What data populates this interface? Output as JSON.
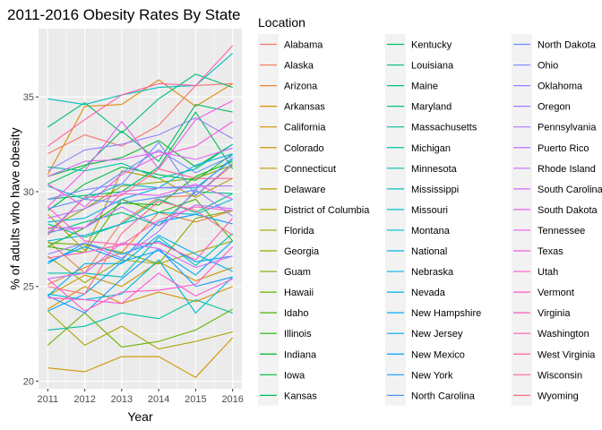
{
  "chart_data": {
    "type": "line",
    "title": "2011-2016 Obesity Rates By State",
    "xlabel": "Year",
    "ylabel": "% of adults who have obesity",
    "x": [
      2011,
      2012,
      2013,
      2014,
      2015,
      2016
    ],
    "xlim": [
      2010.75,
      2016.25
    ],
    "ylim": [
      19.6,
      38.6
    ],
    "yticks": [
      20,
      25,
      30,
      35
    ],
    "grid": true,
    "legend_title": "Location",
    "legend_position": "right",
    "series": [
      {
        "name": "Alabama",
        "color": "#F8766D",
        "values": [
          32.0,
          33.0,
          32.4,
          33.5,
          35.6,
          35.7
        ]
      },
      {
        "name": "Alaska",
        "color": "#F27D52",
        "values": [
          27.4,
          25.7,
          28.4,
          29.7,
          29.8,
          31.4
        ]
      },
      {
        "name": "Arizona",
        "color": "#EA8331",
        "values": [
          25.1,
          26.0,
          26.8,
          28.9,
          28.4,
          29.0
        ]
      },
      {
        "name": "Arkansas",
        "color": "#E38900",
        "values": [
          30.9,
          34.5,
          34.6,
          35.9,
          34.5,
          35.7
        ]
      },
      {
        "name": "California",
        "color": "#DA8F00",
        "values": [
          23.8,
          25.0,
          24.1,
          24.7,
          24.2,
          25.0
        ]
      },
      {
        "name": "Colorado",
        "color": "#D09400",
        "values": [
          20.7,
          20.5,
          21.3,
          21.3,
          20.2,
          22.3
        ]
      },
      {
        "name": "Connecticut",
        "color": "#C59900",
        "values": [
          24.5,
          25.6,
          25.0,
          26.3,
          25.3,
          26.0
        ]
      },
      {
        "name": "Delaware",
        "color": "#B99E00",
        "values": [
          28.8,
          26.9,
          31.1,
          30.7,
          29.7,
          30.7
        ]
      },
      {
        "name": "District of Columbia",
        "color": "#ACA300",
        "values": [
          23.7,
          21.9,
          22.9,
          21.7,
          22.1,
          22.6
        ]
      },
      {
        "name": "Florida",
        "color": "#9EA700",
        "values": [
          26.6,
          25.2,
          26.4,
          26.2,
          26.8,
          27.4
        ]
      },
      {
        "name": "Georgia",
        "color": "#8EAB00",
        "values": [
          28.0,
          29.1,
          30.3,
          30.5,
          30.7,
          31.4
        ]
      },
      {
        "name": "Guam",
        "color": "#7CAE00",
        "values": [
          27.3,
          27.2,
          26.8,
          26.2,
          28.6,
          29.0
        ]
      },
      {
        "name": "Hawaii",
        "color": "#66B200",
        "values": [
          21.9,
          23.6,
          21.8,
          22.1,
          22.7,
          23.8
        ]
      },
      {
        "name": "Idaho",
        "color": "#4BB400",
        "values": [
          27.1,
          26.8,
          29.6,
          28.9,
          29.6,
          27.4
        ]
      },
      {
        "name": "Illinois",
        "color": "#1BB700",
        "values": [
          27.1,
          28.1,
          29.4,
          29.3,
          30.8,
          31.6
        ]
      },
      {
        "name": "Indiana",
        "color": "#00B929",
        "values": [
          30.8,
          31.4,
          31.8,
          32.7,
          31.3,
          32.5
        ]
      },
      {
        "name": "Iowa",
        "color": "#00BB41",
        "values": [
          29.0,
          30.4,
          31.3,
          30.9,
          30.6,
          32.0
        ]
      },
      {
        "name": "Kansas",
        "color": "#00BC53",
        "values": [
          29.6,
          29.8,
          30.0,
          31.3,
          34.2,
          31.2
        ]
      },
      {
        "name": "Kentucky",
        "color": "#00BE64",
        "values": [
          30.4,
          31.3,
          33.2,
          31.6,
          34.6,
          34.2
        ]
      },
      {
        "name": "Louisiana",
        "color": "#00BF73",
        "values": [
          33.4,
          34.7,
          33.1,
          34.9,
          36.2,
          35.5
        ]
      },
      {
        "name": "Maine",
        "color": "#00C082",
        "values": [
          27.8,
          28.4,
          28.9,
          28.2,
          30.0,
          29.9
        ]
      },
      {
        "name": "Maryland",
        "color": "#00C08F",
        "values": [
          28.3,
          27.6,
          28.3,
          29.6,
          28.9,
          29.9
        ]
      },
      {
        "name": "Massachusetts",
        "color": "#00C19C",
        "values": [
          22.7,
          22.9,
          23.6,
          23.3,
          24.3,
          23.6
        ]
      },
      {
        "name": "Michigan",
        "color": "#00C0A8",
        "values": [
          31.3,
          31.1,
          31.5,
          30.7,
          31.2,
          32.5
        ]
      },
      {
        "name": "Minnesota",
        "color": "#00C0B4",
        "values": [
          25.7,
          25.7,
          25.5,
          27.6,
          26.1,
          27.8
        ]
      },
      {
        "name": "Mississippi",
        "color": "#00BFBF",
        "values": [
          34.9,
          34.6,
          35.1,
          35.5,
          35.6,
          37.3
        ]
      },
      {
        "name": "Missouri",
        "color": "#00BDCA",
        "values": [
          30.3,
          29.6,
          30.4,
          30.2,
          30.2,
          31.7
        ]
      },
      {
        "name": "Montana",
        "color": "#00BBD4",
        "values": [
          24.6,
          24.3,
          24.6,
          26.4,
          23.6,
          25.5
        ]
      },
      {
        "name": "National",
        "color": "#00B8DE",
        "values": [
          27.4,
          27.7,
          28.3,
          28.9,
          28.8,
          29.6
        ]
      },
      {
        "name": "Nebraska",
        "color": "#00B4E7",
        "values": [
          28.4,
          28.6,
          29.6,
          30.2,
          31.4,
          32.0
        ]
      },
      {
        "name": "Nevada",
        "color": "#00B0F0",
        "values": [
          24.5,
          26.2,
          26.2,
          27.7,
          26.7,
          25.8
        ]
      },
      {
        "name": "New Hampshire",
        "color": "#00ABF7",
        "values": [
          26.2,
          27.3,
          26.7,
          27.4,
          26.3,
          26.6
        ]
      },
      {
        "name": "New Jersey",
        "color": "#00A6FF",
        "values": [
          23.7,
          24.6,
          26.3,
          26.9,
          25.6,
          27.4
        ]
      },
      {
        "name": "New Mexico",
        "color": "#00A0FF",
        "values": [
          26.3,
          27.1,
          26.4,
          28.4,
          28.8,
          28.3
        ]
      },
      {
        "name": "New York",
        "color": "#179AFF",
        "values": [
          24.5,
          23.6,
          25.4,
          27.0,
          25.0,
          25.5
        ]
      },
      {
        "name": "North Carolina",
        "color": "#4F93FF",
        "values": [
          29.1,
          29.6,
          29.4,
          29.7,
          30.1,
          31.8
        ]
      },
      {
        "name": "North Dakota",
        "color": "#6A8DFF",
        "values": [
          27.8,
          29.7,
          31.0,
          32.2,
          31.0,
          31.9
        ]
      },
      {
        "name": "Ohio",
        "color": "#7F86FF",
        "values": [
          29.6,
          30.1,
          30.4,
          32.6,
          29.8,
          31.5
        ]
      },
      {
        "name": "Oklahoma",
        "color": "#9280FF",
        "values": [
          31.1,
          32.2,
          32.5,
          33.0,
          33.9,
          32.8
        ]
      },
      {
        "name": "Oregon",
        "color": "#A37AFF",
        "values": [
          26.7,
          27.3,
          26.5,
          27.9,
          30.1,
          28.7
        ]
      },
      {
        "name": "Pennsylvania",
        "color": "#B374FF",
        "values": [
          28.6,
          29.1,
          30.0,
          30.2,
          30.3,
          30.3
        ]
      },
      {
        "name": "Puerto Rico",
        "color": "#C16EFF",
        "values": [
          27.9,
          28.1,
          29.2,
          28.2,
          29.3,
          29.1
        ]
      },
      {
        "name": "Rhode Island",
        "color": "#CF68FF",
        "values": [
          25.4,
          25.7,
          27.3,
          27.0,
          26.0,
          26.6
        ]
      },
      {
        "name": "South Carolina",
        "color": "#DB63FB",
        "values": [
          30.8,
          31.6,
          31.7,
          32.1,
          31.7,
          32.3
        ]
      },
      {
        "name": "South Dakota",
        "color": "#E65FF4",
        "values": [
          28.1,
          28.1,
          29.9,
          29.8,
          30.4,
          29.6
        ]
      },
      {
        "name": "Tennessee",
        "color": "#F05AEC",
        "values": [
          29.2,
          31.1,
          33.7,
          31.2,
          33.8,
          34.8
        ]
      },
      {
        "name": "Texas",
        "color": "#F858E2",
        "values": [
          30.4,
          29.2,
          30.9,
          31.9,
          32.4,
          33.7
        ]
      },
      {
        "name": "Utah",
        "color": "#FE56D8",
        "values": [
          24.4,
          24.3,
          24.1,
          25.7,
          24.5,
          25.4
        ]
      },
      {
        "name": "Vermont",
        "color": "#FF56CC",
        "values": [
          25.4,
          23.7,
          24.7,
          24.8,
          25.1,
          27.1
        ]
      },
      {
        "name": "Virginia",
        "color": "#FF58C0",
        "values": [
          29.2,
          27.4,
          27.2,
          28.5,
          29.2,
          29.0
        ]
      },
      {
        "name": "Washington",
        "color": "#FF5BB3",
        "values": [
          26.5,
          26.8,
          27.2,
          27.3,
          26.4,
          28.6
        ]
      },
      {
        "name": "West Virginia",
        "color": "#FF60A5",
        "values": [
          32.4,
          33.8,
          35.1,
          35.7,
          35.6,
          37.7
        ]
      },
      {
        "name": "Wisconsin",
        "color": "#FF6597",
        "values": [
          27.7,
          29.7,
          29.8,
          31.2,
          30.7,
          30.7
        ]
      },
      {
        "name": "Wyoming",
        "color": "#FF6A88",
        "values": [
          25.0,
          24.6,
          27.8,
          29.5,
          29.0,
          27.7
        ]
      }
    ]
  }
}
